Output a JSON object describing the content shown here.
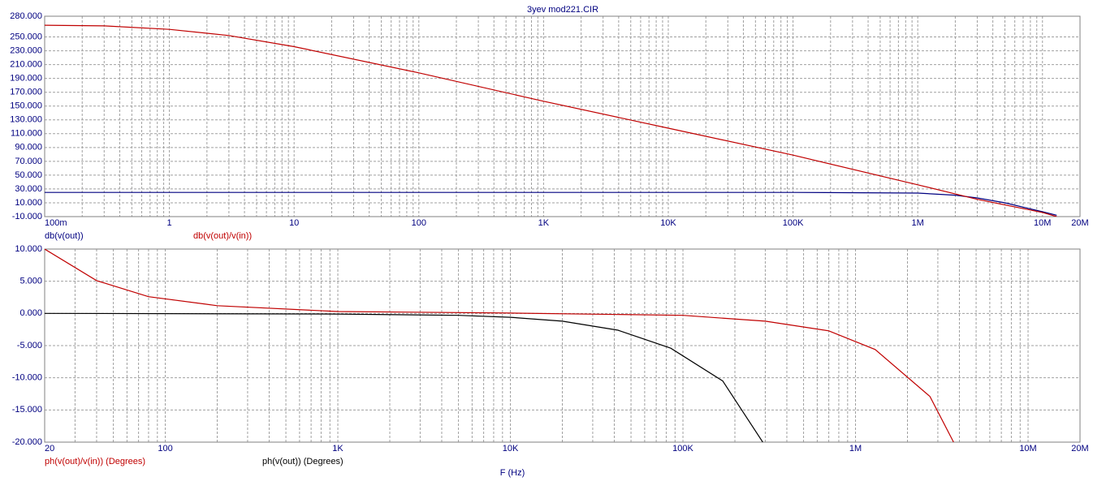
{
  "chart_data": [
    {
      "type": "line",
      "title": "3yev mod221.CIR",
      "log_x": true,
      "grid": true,
      "xlim": [
        0.1,
        20000000
      ],
      "xticks": [
        {
          "value": 0.1,
          "label": "100m"
        },
        1,
        10,
        100,
        {
          "value": 1000,
          "label": "1K"
        },
        {
          "value": 10000,
          "label": "10K"
        },
        {
          "value": 100000,
          "label": "100K"
        },
        {
          "value": 1000000,
          "label": "1M"
        },
        {
          "value": 10000000,
          "label": "10M"
        },
        {
          "value": 20000000,
          "label": "20M"
        }
      ],
      "ylim": [
        -10,
        280
      ],
      "yticks": [
        {
          "value": 280,
          "label": "280.000"
        },
        {
          "value": 250,
          "label": "250.000"
        },
        {
          "value": 230,
          "label": "230.000"
        },
        {
          "value": 210,
          "label": "210.000"
        },
        {
          "value": 190,
          "label": "190.000"
        },
        {
          "value": 170,
          "label": "170.000"
        },
        {
          "value": 150,
          "label": "150.000"
        },
        {
          "value": 130,
          "label": "130.000"
        },
        {
          "value": 110,
          "label": "110.000"
        },
        {
          "value": 90,
          "label": "90.000"
        },
        {
          "value": 70,
          "label": "70.000"
        },
        {
          "value": 50,
          "label": "50.000"
        },
        {
          "value": 30,
          "label": "30.000"
        },
        {
          "value": 10,
          "label": "10.000"
        },
        {
          "value": -10,
          "label": "-10.000"
        }
      ],
      "series": [
        {
          "name": "db(v(out))",
          "color": "#000080",
          "x": [
            0.1,
            100000,
            1000000,
            2000000,
            3000000,
            5000000,
            10000000,
            13000000
          ],
          "values": [
            25,
            25,
            24,
            21,
            17,
            10,
            -3,
            -8
          ]
        },
        {
          "name": "db(v(out)/v(in))",
          "color": "#c00000",
          "x": [
            0.1,
            0.3,
            1,
            3,
            10,
            100,
            1000,
            10000,
            100000,
            1000000,
            3000000,
            10000000,
            13000000
          ],
          "values": [
            267,
            266,
            261,
            252,
            236,
            198,
            157,
            118,
            79,
            36,
            15,
            -4,
            -10
          ]
        }
      ]
    },
    {
      "type": "line",
      "x_label": "F (Hz)",
      "log_x": true,
      "grid": true,
      "xlim": [
        20,
        20000000
      ],
      "xticks": [
        20,
        100,
        {
          "value": 1000,
          "label": "1K"
        },
        {
          "value": 10000,
          "label": "10K"
        },
        {
          "value": 100000,
          "label": "100K"
        },
        {
          "value": 1000000,
          "label": "1M"
        },
        {
          "value": 10000000,
          "label": "10M"
        },
        {
          "value": 20000000,
          "label": "20M"
        }
      ],
      "ylim": [
        -20,
        10
      ],
      "yticks": [
        {
          "value": 10,
          "label": "10.000"
        },
        {
          "value": 5,
          "label": "5.000"
        },
        {
          "value": 0,
          "label": "0.000"
        },
        {
          "value": -5,
          "label": "-5.000"
        },
        {
          "value": -10,
          "label": "-10.000"
        },
        {
          "value": -15,
          "label": "-15.000"
        },
        {
          "value": -20,
          "label": "-20.000"
        }
      ],
      "series": [
        {
          "name": "ph(v(out)/v(in)) (Degrees)",
          "color": "#c00000",
          "x": [
            20,
            40,
            80,
            200,
            1000,
            10000,
            100000,
            300000,
            700000,
            1300000,
            2700000,
            3700000
          ],
          "values": [
            10,
            5.1,
            2.6,
            1.2,
            0.3,
            0.05,
            -0.3,
            -1.2,
            -2.7,
            -5.6,
            -12.9,
            -20
          ]
        },
        {
          "name": "ph(v(out)) (Degrees)",
          "color": "#000000",
          "x": [
            20,
            1000,
            5000,
            10000,
            20000,
            42000,
            85000,
            170000,
            290000
          ],
          "values": [
            0,
            -0.1,
            -0.3,
            -0.6,
            -1.2,
            -2.6,
            -5.4,
            -10.5,
            -20
          ]
        }
      ]
    }
  ]
}
